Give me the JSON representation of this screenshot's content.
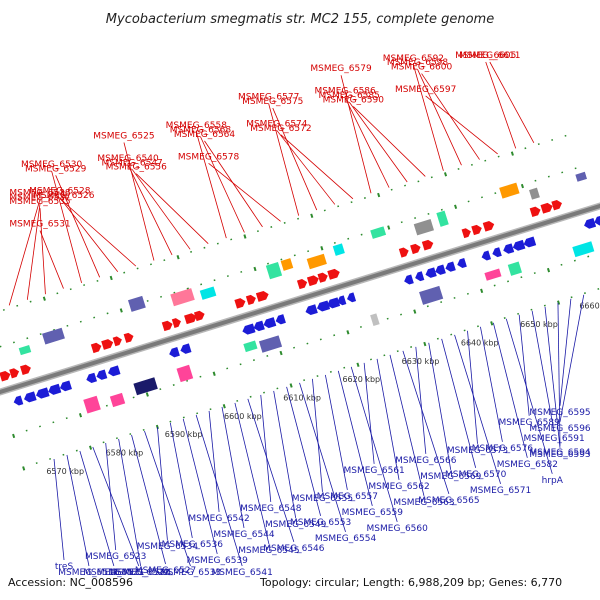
{
  "title": "Mycobacterium smegmatis str. MC2 155, complete genome",
  "footer": {
    "accession": "Accession: NC_008596",
    "topology": "Topology: circular; Length: 6,988,209 bp; Genes: 6,770"
  },
  "colors": {
    "forward_label": "#d40000",
    "reverse_label": "#1a1aa6",
    "backbone": "#7a7a7a",
    "tick": "#2e8b2e"
  },
  "scale_labels": [
    "6570 kbp",
    "6580 kbp",
    "6590 kbp",
    "6600 kbp",
    "6610 kbp",
    "6620 kbp",
    "6630 kbp",
    "6640 kbp",
    "6650 kbp",
    "6660 kbp"
  ],
  "forward_genes": [
    "MSMEG_6538",
    "MSMEG_6537",
    "MSMEG_6535",
    "MSMEG_6531",
    "MSMEG_6530",
    "MSMEG_6529",
    "MSMEG_6528",
    "MSMEG_6526",
    "MSMEG_6525",
    "MSMEG_6540",
    "MSMEG_6547",
    "MSMEG_6556",
    "MSMEG_6558",
    "MSMEG_6568",
    "MSMEG_6564",
    "MSMEG_6578",
    "MSMEG_6577",
    "MSMEG_6575",
    "MSMEG_6574",
    "MSMEG_6572",
    "MSMEG_6579",
    "MSMEG_6586",
    "MSMEG_6585",
    "MSMEG_6590",
    "MSMEG_6592",
    "MSMEG_6598",
    "MSMEG_6600",
    "MSMEG_6597",
    "MSMEG_6605",
    "MSMEG_6611"
  ],
  "reverse_genes": [
    "treS",
    "MSMEG_6516",
    "MSMEG_6521",
    "MSMEG_6522",
    "MSMEG_6523",
    "MSMEG_6524",
    "MSMEG_6527",
    "MSMEG_6533",
    "MSMEG_6534",
    "MSMEG_6536",
    "MSMEG_6539",
    "MSMEG_6541",
    "MSMEG_6542",
    "MSMEG_6544",
    "MSMEG_6545",
    "MSMEG_6546",
    "MSMEG_6548",
    "MSMEG_6549",
    "MSMEG_6553",
    "MSMEG_6554",
    "MSMEG_6555",
    "MSMEG_6557",
    "MSMEG_6559",
    "MSMEG_6560",
    "MSMEG_6561",
    "MSMEG_6562",
    "MSMEG_6563",
    "MSMEG_6565",
    "MSMEG_6566",
    "MSMEG_6569",
    "MSMEG_6570",
    "MSMEG_6571",
    "MSMEG_6573",
    "MSMEG_6576",
    "MSMEG_6582",
    "hrpA",
    "MSMEG_6589",
    "MSMEG_6591",
    "MSMEG_6593",
    "MSMEG_6594",
    "MSMEG_6595",
    "MSMEG_6596"
  ]
}
